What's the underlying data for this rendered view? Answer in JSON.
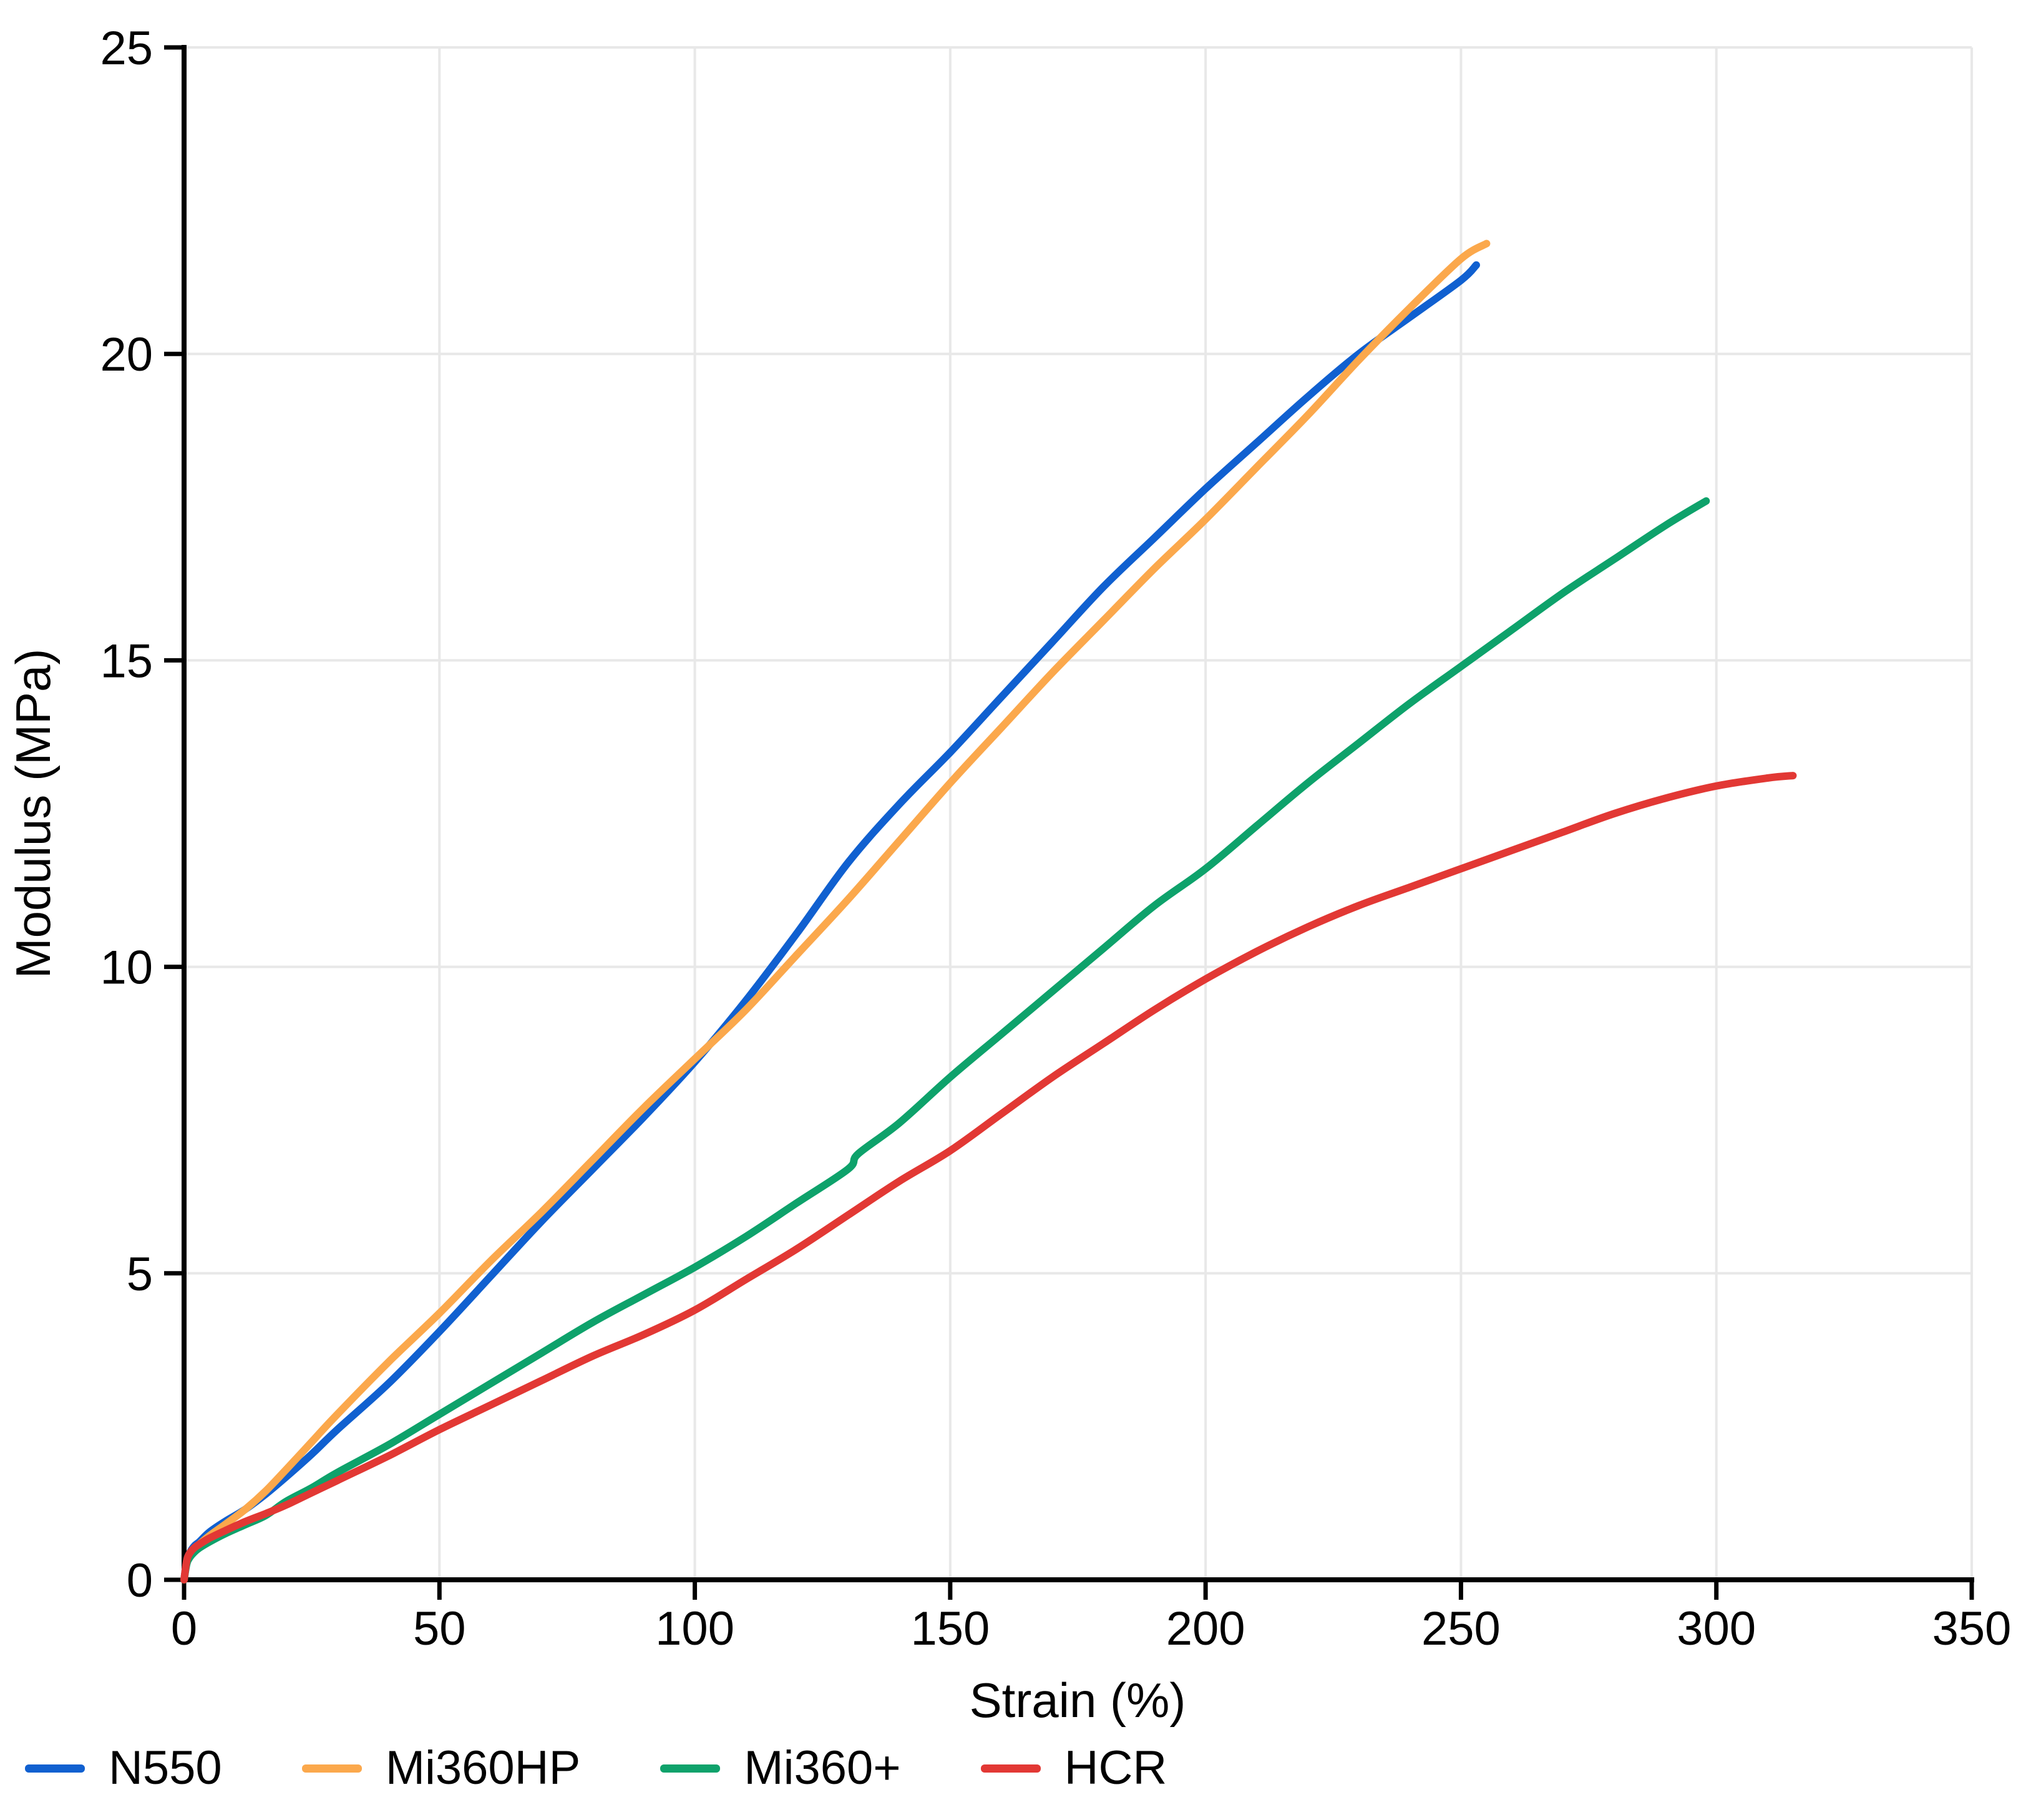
{
  "figure": {
    "background": "#ffffff"
  },
  "styles": {
    "grid_color": "#e8e8e8",
    "axis_color": "#000000",
    "tick_color": "#000000",
    "line_width": 12
  },
  "chart_data": {
    "type": "line",
    "title": "",
    "xlabel": "Strain (%)",
    "ylabel": "Modulus (MPa)",
    "xlim": [
      0,
      350
    ],
    "ylim": [
      0,
      25
    ],
    "xticks": [
      0,
      50,
      100,
      150,
      200,
      250,
      300,
      350
    ],
    "yticks": [
      0,
      5,
      10,
      15,
      20,
      25
    ],
    "grid": true,
    "legend_position": "bottom-left",
    "series": [
      {
        "name": "N550",
        "color": "#1060d0",
        "x": [
          0,
          0.5,
          1,
          2,
          3,
          5,
          8,
          12,
          16,
          20,
          25,
          30,
          40,
          50,
          60,
          70,
          80,
          90,
          100,
          110,
          120,
          130,
          140,
          150,
          160,
          170,
          180,
          190,
          200,
          210,
          220,
          230,
          240,
          250,
          253
        ],
        "y": [
          0,
          0.3,
          0.42,
          0.55,
          0.62,
          0.78,
          0.95,
          1.15,
          1.4,
          1.68,
          2.05,
          2.45,
          3.2,
          4.05,
          4.95,
          5.85,
          6.7,
          7.55,
          8.45,
          9.45,
          10.55,
          11.7,
          12.65,
          13.5,
          14.4,
          15.3,
          16.2,
          17.0,
          17.8,
          18.55,
          19.3,
          20.0,
          20.6,
          21.2,
          21.45
        ]
      },
      {
        "name": "Mi360HP",
        "color": "#fba84c",
        "x": [
          0,
          0.5,
          1,
          2,
          3,
          5,
          8,
          12,
          16,
          20,
          25,
          30,
          40,
          50,
          60,
          70,
          80,
          90,
          100,
          110,
          120,
          130,
          140,
          150,
          160,
          170,
          180,
          190,
          200,
          210,
          220,
          230,
          240,
          250,
          255
        ],
        "y": [
          0,
          0.28,
          0.4,
          0.5,
          0.58,
          0.72,
          0.9,
          1.15,
          1.45,
          1.8,
          2.25,
          2.7,
          3.55,
          4.35,
          5.2,
          6.0,
          6.85,
          7.7,
          8.5,
          9.3,
          10.2,
          11.1,
          12.05,
          13.0,
          13.9,
          14.8,
          15.65,
          16.5,
          17.3,
          18.15,
          19.0,
          19.9,
          20.75,
          21.55,
          21.8
        ]
      },
      {
        "name": "Mi360+",
        "color": "#0ea26b",
        "x": [
          0,
          0.5,
          1,
          2,
          3,
          5,
          8,
          12,
          16,
          20,
          25,
          30,
          40,
          50,
          60,
          70,
          80,
          90,
          100,
          110,
          120,
          130,
          132,
          140,
          150,
          160,
          170,
          180,
          190,
          200,
          210,
          220,
          230,
          240,
          250,
          260,
          270,
          280,
          290,
          298
        ],
        "y": [
          0,
          0.25,
          0.35,
          0.45,
          0.52,
          0.62,
          0.75,
          0.9,
          1.05,
          1.28,
          1.5,
          1.75,
          2.2,
          2.7,
          3.2,
          3.7,
          4.2,
          4.65,
          5.1,
          5.6,
          6.15,
          6.7,
          6.95,
          7.45,
          8.2,
          8.9,
          9.6,
          10.3,
          11.0,
          11.6,
          12.3,
          13.0,
          13.65,
          14.3,
          14.9,
          15.5,
          16.1,
          16.65,
          17.2,
          17.6
        ]
      },
      {
        "name": "HCR",
        "color": "#e23834",
        "x": [
          0,
          0.5,
          1,
          2,
          3,
          5,
          8,
          12,
          16,
          20,
          25,
          30,
          40,
          50,
          60,
          70,
          80,
          90,
          100,
          110,
          120,
          130,
          140,
          150,
          160,
          170,
          180,
          190,
          200,
          210,
          220,
          230,
          240,
          250,
          260,
          270,
          280,
          290,
          300,
          310,
          315
        ],
        "y": [
          0,
          0.3,
          0.42,
          0.52,
          0.58,
          0.68,
          0.8,
          0.95,
          1.08,
          1.22,
          1.42,
          1.62,
          2.02,
          2.45,
          2.85,
          3.25,
          3.65,
          4.0,
          4.4,
          4.9,
          5.4,
          5.95,
          6.5,
          7.0,
          7.6,
          8.2,
          8.75,
          9.3,
          9.8,
          10.25,
          10.65,
          11.0,
          11.3,
          11.6,
          11.9,
          12.2,
          12.5,
          12.75,
          12.95,
          13.08,
          13.12
        ]
      }
    ]
  },
  "legend": {
    "items": [
      {
        "label": "N550"
      },
      {
        "label": "Mi360HP"
      },
      {
        "label": "Mi360+"
      },
      {
        "label": "HCR"
      }
    ]
  }
}
